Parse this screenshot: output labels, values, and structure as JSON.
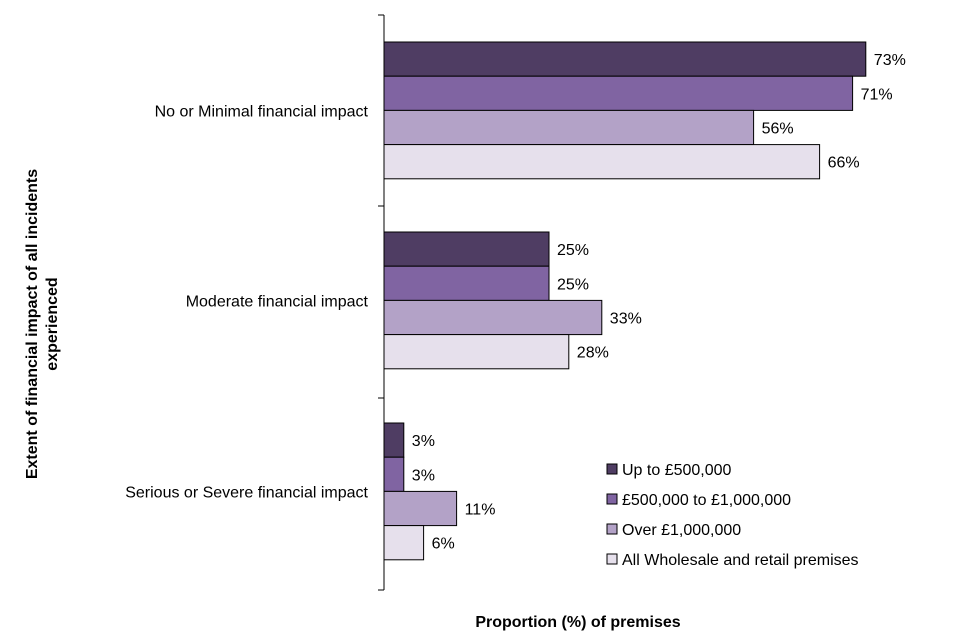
{
  "chart_data": {
    "type": "bar",
    "orientation": "horizontal",
    "title": "",
    "xlabel": "Proportion (%) of premises",
    "ylabel_lines": [
      "Extent of financial impact of all incidents",
      "experienced"
    ],
    "xlim": [
      0,
      80
    ],
    "grid": false,
    "legend_position": "bottom-right",
    "value_suffix": "%",
    "categories": [
      "No or Minimal financial impact",
      "Moderate financial impact",
      "Serious or Severe financial impact"
    ],
    "series": [
      {
        "name": "Up to £500,000",
        "color": "#4f3d63",
        "values": [
          73,
          25,
          3
        ]
      },
      {
        "name": "£500,000 to £1,000,000",
        "color": "#8064a2",
        "values": [
          71,
          25,
          3
        ]
      },
      {
        "name": "Over £1,000,000",
        "color": "#b3a2c7",
        "values": [
          56,
          33,
          11
        ]
      },
      {
        "name": "All Wholesale and retail premises",
        "color": "#e6e0ec",
        "values": [
          66,
          28,
          6
        ]
      }
    ]
  }
}
